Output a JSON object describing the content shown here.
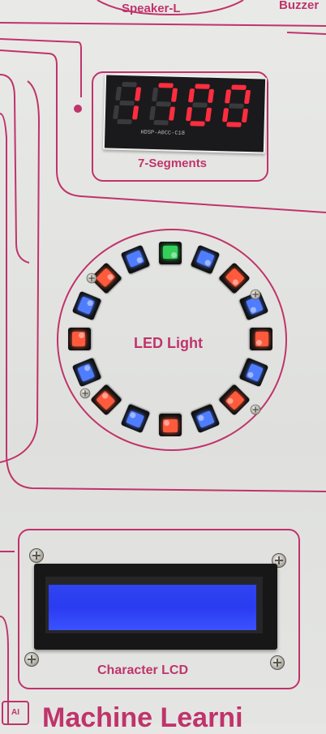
{
  "board": {
    "top_labels": {
      "speaker": "Speaker-L",
      "buzzer": "Buzzer"
    },
    "seven_segment": {
      "label": "7-Segments",
      "digits": [
        "1",
        "7",
        "0",
        "0"
      ],
      "digit_color": "#ff2d3f",
      "part_number": "HDSP-A0CC-C18"
    },
    "led_ring": {
      "label": "LED Light",
      "leds": [
        {
          "color": "green"
        },
        {
          "color": "blue"
        },
        {
          "color": "red"
        },
        {
          "color": "blue"
        },
        {
          "color": "red"
        },
        {
          "color": "blue"
        },
        {
          "color": "red"
        },
        {
          "color": "blue"
        },
        {
          "color": "red"
        },
        {
          "color": "blue"
        },
        {
          "color": "red"
        },
        {
          "color": "blue"
        },
        {
          "color": "red"
        },
        {
          "color": "blue"
        },
        {
          "color": "red"
        },
        {
          "color": "blue"
        }
      ],
      "colors": {
        "green": "#33d05a",
        "blue": "#4f7dff",
        "red": "#ff5a3c"
      }
    },
    "lcd": {
      "label": "Character LCD",
      "screen_color": "#3046f5"
    },
    "footer_text": "Machine Learni",
    "accent_color": "#c0336b"
  }
}
